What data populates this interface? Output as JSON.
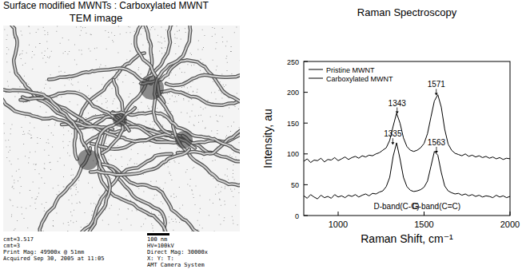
{
  "header": {
    "title": "Surface modified MWNTs : Carboxylated MWNT"
  },
  "image": {
    "title": "TEM image",
    "scale_bar": "100 nm",
    "caption_left": [
      "cmt=3.517",
      "cmt=3",
      "Print Mag: 49900x @ 51mm",
      "Acquired Sep 30, 2005 at 11:05"
    ],
    "caption_right": [
      "HV=100kV",
      "Direct Mag: 30000x",
      "X: Y: T:",
      "AMT Camera System"
    ]
  },
  "chart_data": {
    "type": "line",
    "title": "Raman Spectroscopy",
    "x_label": "Raman Shift, cm⁻¹",
    "y_label": "Intensity, au",
    "x": [
      800,
      820,
      840,
      860,
      880,
      900,
      920,
      940,
      960,
      980,
      1000,
      1020,
      1040,
      1060,
      1080,
      1100,
      1120,
      1140,
      1160,
      1180,
      1200,
      1220,
      1240,
      1260,
      1280,
      1300,
      1320,
      1340,
      1360,
      1380,
      1400,
      1420,
      1440,
      1460,
      1480,
      1500,
      1520,
      1540,
      1560,
      1580,
      1600,
      1620,
      1640,
      1660,
      1680,
      1700,
      1720,
      1740,
      1760,
      1780,
      1800,
      1820,
      1840,
      1860,
      1880,
      1900,
      1920,
      1940,
      1960,
      1980,
      2000
    ],
    "series": [
      {
        "name": "Pristine MWNT",
        "color": "#000000",
        "values": [
          88,
          92,
          86,
          90,
          89,
          93,
          87,
          91,
          90,
          94,
          89,
          92,
          95,
          91,
          94,
          96,
          93,
          97,
          95,
          98,
          97,
          100,
          102,
          106,
          110,
          122,
          145,
          166,
          150,
          126,
          112,
          106,
          104,
          106,
          110,
          117,
          133,
          160,
          186,
          196,
          176,
          140,
          116,
          106,
          101,
          99,
          97,
          100,
          96,
          98,
          95,
          97,
          94,
          96,
          93,
          95,
          92,
          94,
          91,
          93,
          92
        ]
      },
      {
        "name": "Carboxylated MWNT",
        "color": "#000000",
        "values": [
          32,
          28,
          34,
          30,
          27,
          33,
          29,
          31,
          28,
          34,
          30,
          32,
          29,
          33,
          31,
          34,
          30,
          33,
          35,
          32,
          36,
          35,
          38,
          40,
          47,
          62,
          96,
          118,
          92,
          62,
          47,
          41,
          39,
          40,
          42,
          46,
          56,
          80,
          104,
          98,
          70,
          48,
          40,
          37,
          35,
          36,
          33,
          35,
          32,
          34,
          31,
          33,
          30,
          32,
          31,
          29,
          33,
          30,
          32,
          29,
          31
        ]
      }
    ],
    "annotations": [
      {
        "text": "1343",
        "x": 1343,
        "y": 178
      },
      {
        "text": "1571",
        "x": 1571,
        "y": 208
      },
      {
        "text": "1335",
        "x": 1318,
        "y": 128
      },
      {
        "text": "1563",
        "x": 1572,
        "y": 114
      },
      {
        "text": "D-band(C-C)",
        "x": 1340,
        "y": 10
      },
      {
        "text": "G-band(C=C)",
        "x": 1572,
        "y": 10
      }
    ],
    "xlim": [
      800,
      2000
    ],
    "xticks": [
      1000,
      1500,
      2000
    ],
    "ylim": [
      0,
      250
    ],
    "yticks": [
      0,
      50,
      100,
      150,
      200,
      250
    ],
    "grid": false,
    "legend": "upper left"
  }
}
